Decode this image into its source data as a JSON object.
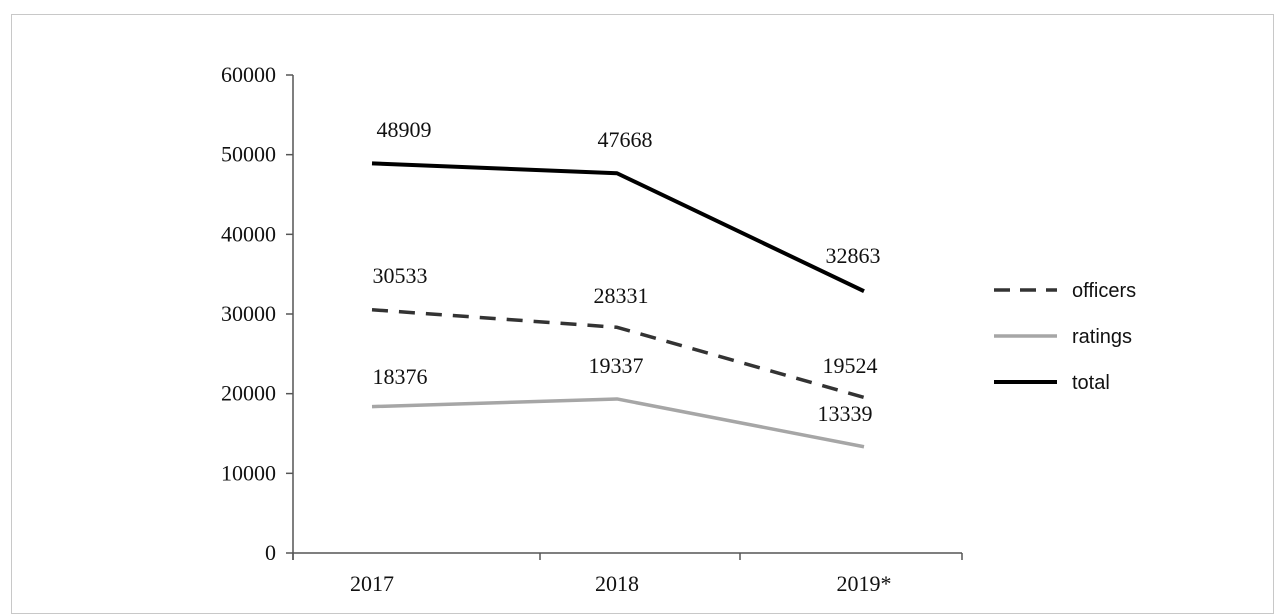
{
  "chart_data": {
    "type": "line",
    "categories": [
      "2017",
      "2018",
      "2019*"
    ],
    "ylim": [
      0,
      60000
    ],
    "yticks": [
      "0",
      "10000",
      "20000",
      "30000",
      "40000",
      "50000",
      "60000"
    ],
    "grid": false,
    "legend_position": "right",
    "series": [
      {
        "name": "officers",
        "values": [
          30533,
          28331,
          19524
        ],
        "labels": [
          "30533",
          "28331",
          "19524"
        ],
        "color": "#333333",
        "style": "dashed"
      },
      {
        "name": "ratings",
        "values": [
          18376,
          19337,
          13339
        ],
        "labels": [
          "18376",
          "19337",
          "13339"
        ],
        "color": "#a6a6a6",
        "style": "solid"
      },
      {
        "name": "total",
        "values": [
          48909,
          47668,
          32863
        ],
        "labels": [
          "48909",
          "47668",
          "32863"
        ],
        "color": "#000000",
        "style": "solid"
      }
    ]
  }
}
